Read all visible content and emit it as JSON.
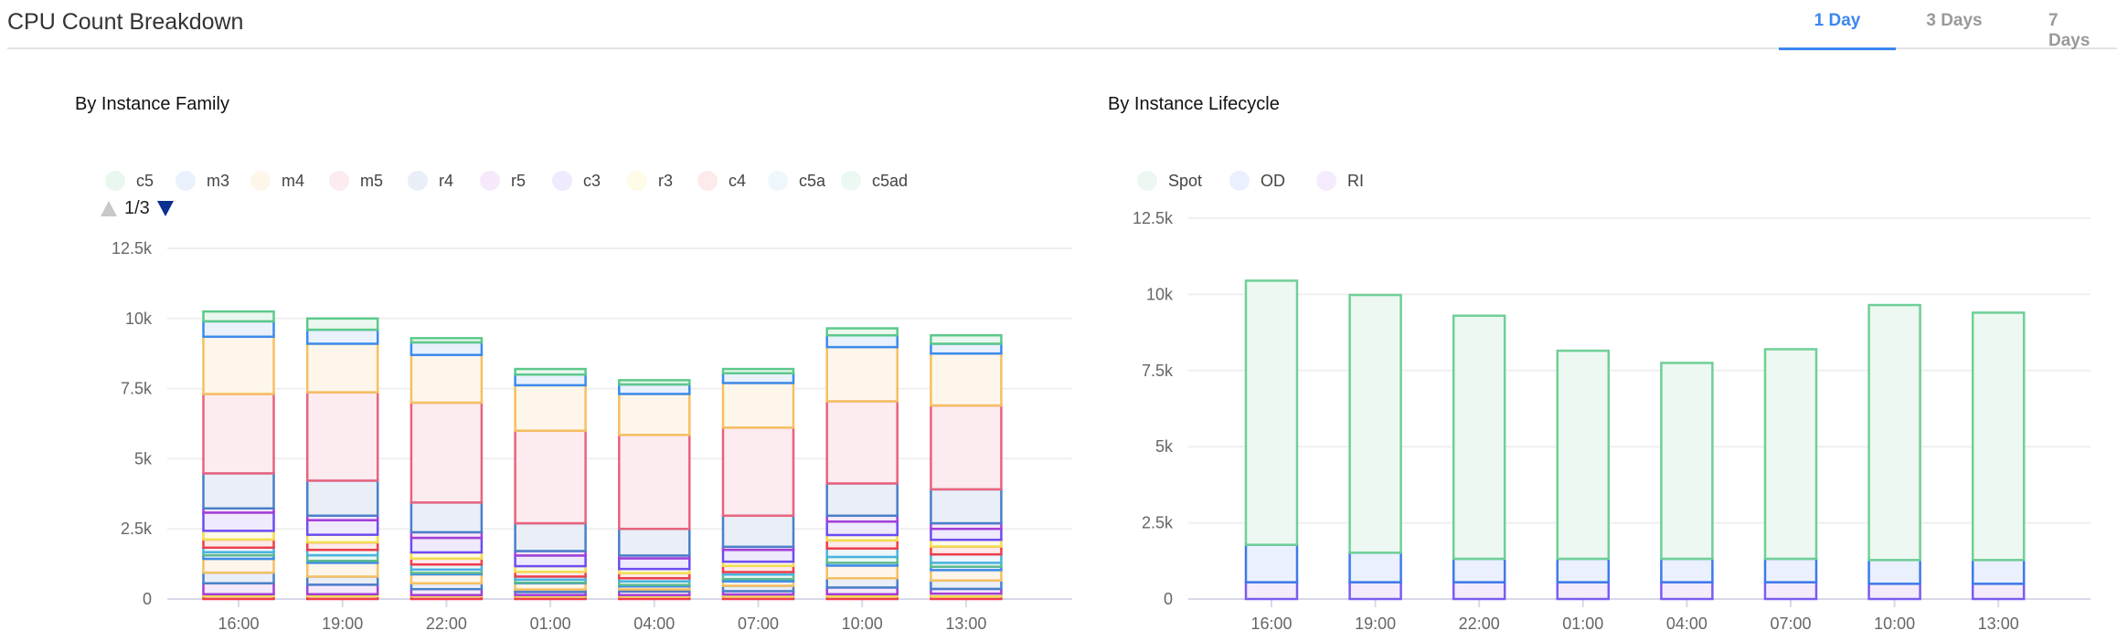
{
  "header": {
    "title": "CPU Count Breakdown",
    "tabs": [
      {
        "label": "1 Day",
        "active": true
      },
      {
        "label": "3 Days",
        "active": false
      },
      {
        "label": "7 Days",
        "active": false
      }
    ],
    "accent_color": "#3b86f0"
  },
  "family_panel": {
    "title": "By Instance Family",
    "pager": {
      "label": "1/3",
      "up_icon": "triangle-up-icon",
      "down_icon": "triangle-down-icon"
    }
  },
  "lifecycle_panel": {
    "title": "By Instance Lifecycle"
  },
  "chart_data": [
    {
      "type": "bar",
      "stacked": true,
      "title": "By Instance Family",
      "categories": [
        "16:00",
        "19:00",
        "22:00",
        "01:00",
        "04:00",
        "07:00",
        "10:00",
        "13:00"
      ],
      "ylim": [
        0,
        12500
      ],
      "yticks": [
        {
          "value": 0,
          "label": "0"
        },
        {
          "value": 2500,
          "label": "2.5k"
        },
        {
          "value": 5000,
          "label": "5k"
        },
        {
          "value": 7500,
          "label": "7.5k"
        },
        {
          "value": 10000,
          "label": "10k"
        },
        {
          "value": 12500,
          "label": "12.5k"
        }
      ],
      "grid": true,
      "legend_position": "top-left",
      "series": [
        {
          "name": "c5",
          "stroke": "#5cc98a",
          "fill": "#eaf7ef",
          "values": [
            350,
            400,
            150,
            200,
            150,
            150,
            250,
            300
          ]
        },
        {
          "name": "m3",
          "stroke": "#3b8beb",
          "fill": "#e9f1fd",
          "values": [
            550,
            500,
            450,
            380,
            340,
            350,
            420,
            350
          ]
        },
        {
          "name": "m4",
          "stroke": "#f5c062",
          "fill": "#fef6eb",
          "values": [
            2040,
            1730,
            1700,
            1620,
            1460,
            1590,
            1930,
            1850
          ]
        },
        {
          "name": "m5",
          "stroke": "#e8637f",
          "fill": "#fcebef",
          "values": [
            2830,
            3150,
            3560,
            3300,
            3350,
            3140,
            2930,
            2990
          ]
        },
        {
          "name": "r4",
          "stroke": "#4a7fc9",
          "fill": "#e9eef7",
          "values": [
            1250,
            1250,
            1060,
            990,
            950,
            1110,
            1150,
            1210
          ]
        },
        {
          "name": "r5",
          "stroke": "#a23fd6",
          "fill": "#f6e9fb",
          "values": [
            150,
            160,
            200,
            160,
            100,
            110,
            210,
            200
          ]
        },
        {
          "name": "c3",
          "stroke": "#6d4cf5",
          "fill": "#efeafd",
          "values": [
            650,
            520,
            520,
            380,
            380,
            420,
            480,
            390
          ]
        },
        {
          "name": "r3",
          "stroke": "#f2dc4f",
          "fill": "#fefbe6",
          "values": [
            310,
            270,
            220,
            200,
            150,
            150,
            190,
            240
          ]
        },
        {
          "name": "c4",
          "stroke": "#ee3e4a",
          "fill": "#fdeaea",
          "values": [
            290,
            270,
            210,
            170,
            180,
            220,
            290,
            280
          ]
        },
        {
          "name": "c5a",
          "stroke": "#4bb2e0",
          "fill": "#eef7fc",
          "values": [
            160,
            190,
            180,
            110,
            110,
            90,
            300,
            300
          ]
        },
        {
          "name": "c5ad",
          "stroke": "#5fba8e",
          "fill": "#ecf8f2",
          "values": [
            110,
            200,
            120,
            110,
            130,
            160,
            210,
            140
          ]
        },
        {
          "stroke": "#3b8beb",
          "fill": "#e9f1fd",
          "values": [
            130,
            70,
            50,
            20,
            50,
            80,
            100,
            120
          ]
        },
        {
          "stroke": "#f5c062",
          "fill": "#fef6eb",
          "values": [
            490,
            490,
            320,
            220,
            110,
            160,
            450,
            370
          ]
        },
        {
          "stroke": "#4a7fc9",
          "fill": "#e9eef7",
          "values": [
            380,
            290,
            210,
            90,
            70,
            190,
            330,
            300
          ]
        },
        {
          "stroke": "#a23fd6",
          "fill": "#f6e9fb",
          "values": [
            390,
            340,
            210,
            110,
            130,
            120,
            240,
            170
          ]
        },
        {
          "stroke": "#f2dc4f",
          "fill": "#fefbe6",
          "values": [
            70,
            70,
            40,
            50,
            50,
            70,
            80,
            100
          ]
        },
        {
          "stroke": "#ee3e4a",
          "fill": "#fdeaea",
          "values": [
            100,
            100,
            100,
            90,
            90,
            90,
            90,
            90
          ]
        }
      ]
    },
    {
      "type": "bar",
      "stacked": true,
      "title": "By Instance Lifecycle",
      "categories": [
        "16:00",
        "19:00",
        "22:00",
        "01:00",
        "04:00",
        "07:00",
        "10:00",
        "13:00"
      ],
      "ylim": [
        0,
        12500
      ],
      "yticks": [
        {
          "value": 0,
          "label": "0"
        },
        {
          "value": 2500,
          "label": "2.5k"
        },
        {
          "value": 5000,
          "label": "5k"
        },
        {
          "value": 7500,
          "label": "7.5k"
        },
        {
          "value": 10000,
          "label": "10k"
        },
        {
          "value": 12500,
          "label": "12.5k"
        }
      ],
      "grid": true,
      "legend_position": "top-left",
      "series": [
        {
          "name": "Spot",
          "stroke": "#6fcf97",
          "fill": "#ecf8f1",
          "values": [
            8670,
            8460,
            7980,
            6830,
            6430,
            6880,
            8370,
            8120
          ]
        },
        {
          "name": "OD",
          "stroke": "#3d7ae8",
          "fill": "#eaf0fd",
          "values": [
            1230,
            970,
            770,
            770,
            770,
            770,
            780,
            780
          ]
        },
        {
          "name": "RI",
          "stroke": "#7b5cf0",
          "fill": "#f4ecfd",
          "values": [
            550,
            550,
            550,
            550,
            550,
            550,
            500,
            500
          ]
        }
      ]
    }
  ]
}
